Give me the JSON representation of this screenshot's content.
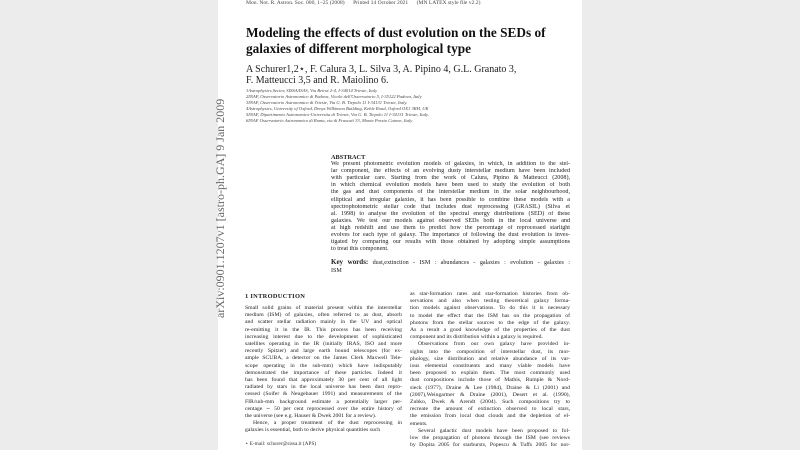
{
  "header": {
    "journal": "Mon. Not. R. Astron. Soc. 000, 1–25 (2008)",
    "printed": "Printed 14 October 2021",
    "style": "(MN LATEX style file v2.2)"
  },
  "arxiv_id": "arXiv:0901.1207v1  [astro-ph.GA]  9 Jan 2009",
  "title": [
    "Modeling the effects of dust evolution on the SEDs of",
    "galaxies of different morphological type"
  ],
  "authors": [
    "A Schurer1,2⋆, F. Calura 3, L. Silva 3, A. Pipino 4, G.L. Granato 3,",
    "F. Matteucci 3,5 and R. Maiolino 6."
  ],
  "affiliations": [
    "1Astrophysics Sector, SISSA/ISAS, Via Beirut 2-4, I-34014 Trieste, Italy",
    "2INAF, Osservatorio Astronomico di Padova, Vicolo dell'Osservatorio 5, I-35122 Padova, Italy",
    "3INAF, Osservatorio Astronomico di Trieste, Via G. B. Tiepolo 11 I-34131 Trieste, Italy.",
    "4Astrophysics, University of Oxford, Denys Wilkinson Building, Keble Road, Oxford OX1 3RH, UK",
    "5INAF, Dipartimento Astronomico-Universita di Trieste, Via G. B. Tiepolo 11 I-34131 Trieste, Italy.",
    "6INAF  Osservatorio Astronomico di Roma, via di Frascati 33, Monte Porzio Catone, Italy"
  ],
  "abstract": {
    "heading": "ABSTRACT",
    "lines": [
      "We present photometric evolution models of galaxies, in which, in addition to the stel-",
      "lar component, the effects of an evolving dusty interstellar medium have been included",
      "with particular care. Starting from the work of Calura, Pipino & Matteucci (2008),",
      "in which chemical evolution models have been used to study the evolution of both",
      "the gas and dust components of the interstellar medium in the solar neighbourhood,",
      "elliptical and irregular galaxies, it has been possible to combine these models with a",
      "spectrophotometric stellar code that includes dust reprocessing (GRASIL) (Silva et",
      "al. 1998) to analyse the evolution of the spectral energy distributions (SED) of these",
      "galaxies. We test our models against observed SEDs both in the local universe and",
      "at high redshift and use them to predict how the percentage of reprocessed starlight",
      "evolves for each type of galaxy. The importance of following the dust evolution is inves-",
      "tigated by comparing our results with those obtained by adopting simple assumptions",
      "to treat this component."
    ]
  },
  "keywords": {
    "label": "Key words:",
    "lines": [
      "dust,extinction - ISM : abundances - galaxies : evolution - galaxies :",
      "ISM"
    ]
  },
  "intro": {
    "heading": "1   INTRODUCTION",
    "left": [
      "Small solid grains of material present within the interstellar",
      "medium (ISM) of galaxies, often referred to as dust, absorb",
      "and scatter stellar radiation mainly in the UV and optical",
      "re-emitting it in the IR. This process has been receiving",
      "increasing interest due to the development of sophisticated",
      "satellites operating in the IR (initially IRAS, ISO and more",
      "recently Spitzer) and large earth bound telescopes (for ex-",
      "ample SCUBA, a detector on the James Clerk Maxwell Tele-",
      "scope operating in the sub-mm) which have indisputably",
      "demonstrated the importance of these particles. Indeed it",
      "has been found that approximately 30 per cent of all light",
      "radiated by stars in the local universe has been dust repro-",
      "cessed (Soifer & Neugebauer 1991) and measurements of the",
      "FIR/sub-mm background estimate a potentially larger per-",
      "centage ∼ 50 per cent reprocessed over the entire history of",
      "the universe (see e.g. Hauser & Dwek 2001 for a review).",
      "Hence, a proper treatment of the dust reprocessing in",
      "galaxies is essential, both to derive physical quantities such"
    ],
    "right": [
      "as star-formation rates and star-formation histories from ob-",
      "servations and also when testing theoretical galaxy forma-",
      "tion models against observations. To do this it is necessary",
      "to model the effect that the ISM has on the propagation of",
      "photons from the stellar sources to the edge of the galaxy.",
      "As a result a good knowledge of the properties of the dust",
      "component and its distribution within a galaxy is required.",
      "Observations from our own galaxy have provided in-",
      "sights into the composition of interstellar dust, its mor-",
      "phology, size distribution and relative abundance of its var-",
      "ious elemental constituents and many viable models have",
      "been proposed to explain them. The most commonly used",
      "dust compositions include those of Mathis, Rumple & Nord-",
      "sieck (1977), Draine & Lee (1984), Draine & Li (2001) and",
      "(2007),Weingartner & Draine (2001), Desert et al. (1990),",
      "Zubko, Dwek & Arendt (2004). Such compositions try to",
      "recreate the amount of extinction observed to local stars,",
      "the emission from local dust clouds and the depletion of el-",
      "ements.",
      "Several galactic dust models have been proposed to fol-",
      "low the propagation of photons through the ISM (see reviews",
      "by Dopita 2005 for starbursts, Popescu & Tuffs 2005 for nor-"
    ]
  },
  "footnote": "⋆ E-mail: schurer@sissa.it (APS)"
}
